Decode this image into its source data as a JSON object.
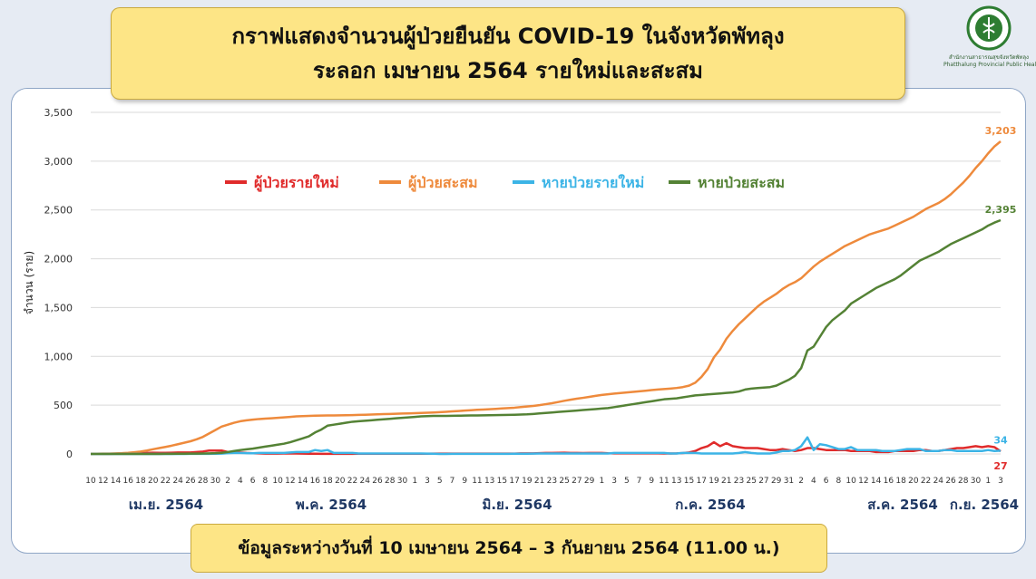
{
  "header": {
    "title_lines": [
      "กราฟแสดงจำนวนผู้ป่วยยืนยัน COVID-19 ในจังหวัดพัทลุง",
      "ระลอก เมษายน 2564 รายใหม่และสะสม"
    ],
    "logo_lines": [
      "สำนักงานสาธารณสุขจังหวัดพัทลุง",
      "Phatthalung Provincial Public Health Office"
    ]
  },
  "footer": "ข้อมูลระหว่างวันที่ 10 เมษายน 2564 – 3 กันยายน 2564 (11.00 น.)",
  "chart_data": {
    "type": "line",
    "y_label": "จำนวน (ราย)",
    "legend": "top",
    "grid": true,
    "ylim": [
      0,
      3500
    ],
    "yticks": [
      0,
      500,
      {
        "value": 1000,
        "label": "1,000"
      },
      {
        "value": 1500,
        "label": "1,500"
      },
      {
        "value": 2000,
        "label": "2,000"
      },
      {
        "value": 2500,
        "label": "2,500"
      },
      {
        "value": 3000,
        "label": "3,000"
      },
      {
        "value": 3500,
        "label": "3,500"
      }
    ],
    "month_labels": [
      "เม.ย. 2564",
      "พ.ค. 2564",
      "มิ.ย. 2564",
      "ก.ค. 2564",
      "ส.ค. 2564",
      "ก.ย. 2564"
    ],
    "categories": [
      "10",
      null,
      "12",
      null,
      "14",
      null,
      "16",
      null,
      "18",
      null,
      "20",
      null,
      "22",
      null,
      "24",
      null,
      "26",
      null,
      "28",
      null,
      "30",
      null,
      "2",
      null,
      "4",
      null,
      "6",
      null,
      "8",
      null,
      "10",
      null,
      "12",
      null,
      "14",
      null,
      "16",
      null,
      "18",
      null,
      "20",
      null,
      "22",
      null,
      "24",
      null,
      "26",
      null,
      "28",
      null,
      "30",
      null,
      "1",
      null,
      "3",
      null,
      "5",
      null,
      "7",
      null,
      "9",
      null,
      "11",
      null,
      "13",
      null,
      "15",
      null,
      "17",
      null,
      "19",
      null,
      "21",
      null,
      "23",
      null,
      "25",
      null,
      "27",
      null,
      "29",
      null,
      "1",
      null,
      "3",
      null,
      "5",
      null,
      "7",
      null,
      "9",
      null,
      "11",
      null,
      "13",
      null,
      "15",
      null,
      "17",
      null,
      "19",
      null,
      "21",
      null,
      "23",
      null,
      "25",
      null,
      "27",
      null,
      "29",
      null,
      "31",
      null,
      "2",
      null,
      "4",
      null,
      "6",
      null,
      "8",
      null,
      "10",
      null,
      "12",
      null,
      "14",
      null,
      "16",
      null,
      "18",
      null,
      "20",
      null,
      "22",
      null,
      "24",
      null,
      "26",
      null,
      "28",
      null,
      "30",
      null,
      "1",
      null,
      "3"
    ],
    "series": [
      {
        "name": "ผู้ป่วยรายใหม่",
        "color": "#e02b2b",
        "values": [
          1,
          1,
          1,
          1,
          2,
          2,
          4,
          6,
          7,
          10,
          13,
          12,
          12,
          13,
          15,
          15,
          15,
          20,
          25,
          35,
          35,
          35,
          20,
          20,
          15,
          10,
          7,
          6,
          4,
          4,
          4,
          5,
          5,
          5,
          3,
          2,
          2,
          1,
          1,
          1,
          1,
          1,
          1,
          2,
          2,
          2,
          2,
          2,
          2,
          2,
          2,
          2,
          2,
          2,
          2,
          3,
          3,
          4,
          4,
          4,
          4,
          4,
          4,
          3,
          3,
          4,
          4,
          4,
          4,
          6,
          6,
          6,
          8,
          10,
          10,
          12,
          13,
          11,
          10,
          9,
          10,
          10,
          10,
          7,
          6,
          6,
          6,
          6,
          6,
          6,
          6,
          6,
          5,
          5,
          6,
          9,
          15,
          30,
          60,
          80,
          120,
          80,
          110,
          80,
          70,
          60,
          60,
          60,
          50,
          40,
          40,
          50,
          40,
          30,
          40,
          60,
          60,
          50,
          40,
          40,
          40,
          40,
          30,
          30,
          30,
          30,
          20,
          20,
          20,
          30,
          30,
          30,
          30,
          40,
          40,
          30,
          30,
          40,
          50,
          60,
          60,
          70,
          80,
          70,
          80,
          70,
          27
        ]
      },
      {
        "name": "ผู้ป่วยสะสม",
        "color": "#ee8a3c",
        "value_labels": {
          "146": "3,203"
        },
        "values": [
          1,
          2,
          3,
          4,
          6,
          8,
          12,
          18,
          25,
          35,
          48,
          60,
          72,
          85,
          100,
          115,
          130,
          150,
          175,
          210,
          245,
          280,
          300,
          320,
          335,
          345,
          352,
          358,
          362,
          366,
          370,
          375,
          380,
          385,
          388,
          390,
          392,
          393,
          394,
          395,
          396,
          397,
          398,
          400,
          402,
          404,
          406,
          408,
          410,
          412,
          414,
          416,
          418,
          420,
          422,
          425,
          428,
          432,
          436,
          440,
          444,
          448,
          452,
          455,
          458,
          462,
          466,
          470,
          474,
          480,
          486,
          492,
          500,
          510,
          520,
          532,
          545,
          556,
          566,
          575,
          585,
          595,
          605,
          612,
          618,
          624,
          630,
          636,
          642,
          648,
          654,
          660,
          665,
          670,
          676,
          685,
          700,
          730,
          790,
          870,
          990,
          1070,
          1180,
          1260,
          1330,
          1390,
          1450,
          1510,
          1560,
          1600,
          1640,
          1690,
          1730,
          1760,
          1800,
          1860,
          1920,
          1970,
          2010,
          2050,
          2090,
          2130,
          2160,
          2190,
          2220,
          2250,
          2270,
          2290,
          2310,
          2340,
          2370,
          2400,
          2430,
          2470,
          2510,
          2540,
          2570,
          2610,
          2660,
          2720,
          2780,
          2850,
          2930,
          3000,
          3080,
          3150,
          3203
        ]
      },
      {
        "name": "หายป่วยรายใหม่",
        "color": "#3cb4e6",
        "values": [
          0,
          0,
          0,
          0,
          0,
          0,
          0,
          0,
          0,
          0,
          0,
          0,
          1,
          0,
          1,
          0,
          1,
          1,
          1,
          1,
          2,
          4,
          8,
          10,
          10,
          8,
          7,
          10,
          10,
          10,
          10,
          10,
          15,
          20,
          20,
          20,
          40,
          30,
          40,
          10,
          10,
          10,
          10,
          5,
          5,
          5,
          5,
          5,
          5,
          5,
          5,
          5,
          5,
          5,
          3,
          2,
          0,
          0,
          1,
          1,
          1,
          1,
          1,
          1,
          1,
          1,
          1,
          1,
          2,
          2,
          2,
          4,
          5,
          5,
          5,
          5,
          5,
          5,
          5,
          5,
          5,
          5,
          5,
          5,
          10,
          10,
          10,
          10,
          10,
          10,
          10,
          10,
          10,
          5,
          5,
          10,
          10,
          10,
          5,
          5,
          5,
          5,
          5,
          5,
          10,
          20,
          10,
          5,
          5,
          5,
          15,
          30,
          30,
          40,
          80,
          170,
          40,
          100,
          90,
          70,
          50,
          50,
          70,
          40,
          40,
          40,
          40,
          30,
          30,
          30,
          40,
          50,
          50,
          50,
          30,
          30,
          30,
          40,
          40,
          30,
          30,
          30,
          30,
          30,
          40,
          30,
          34
        ]
      },
      {
        "name": "หายป่วยสะสม",
        "color": "#548235",
        "value_labels": {
          "146": "2,395"
        },
        "values": [
          0,
          0,
          0,
          0,
          0,
          0,
          0,
          0,
          0,
          0,
          0,
          0,
          1,
          1,
          2,
          2,
          3,
          4,
          5,
          6,
          8,
          12,
          20,
          30,
          40,
          48,
          55,
          65,
          75,
          85,
          95,
          105,
          120,
          140,
          160,
          180,
          220,
          250,
          290,
          300,
          310,
          320,
          330,
          335,
          340,
          345,
          350,
          355,
          360,
          365,
          370,
          375,
          380,
          385,
          388,
          390,
          390,
          390,
          391,
          392,
          393,
          394,
          395,
          396,
          397,
          398,
          399,
          400,
          402,
          404,
          406,
          410,
          415,
          420,
          425,
          430,
          435,
          440,
          445,
          450,
          455,
          460,
          465,
          470,
          480,
          490,
          500,
          510,
          520,
          530,
          540,
          550,
          560,
          565,
          570,
          580,
          590,
          600,
          605,
          610,
          615,
          620,
          625,
          630,
          640,
          660,
          670,
          675,
          680,
          685,
          700,
          730,
          760,
          800,
          880,
          1060,
          1100,
          1200,
          1300,
          1370,
          1420,
          1470,
          1540,
          1580,
          1620,
          1660,
          1700,
          1730,
          1760,
          1790,
          1830,
          1880,
          1930,
          1980,
          2010,
          2040,
          2070,
          2110,
          2150,
          2180,
          2210,
          2240,
          2270,
          2300,
          2340,
          2370,
          2395
        ]
      }
    ]
  }
}
